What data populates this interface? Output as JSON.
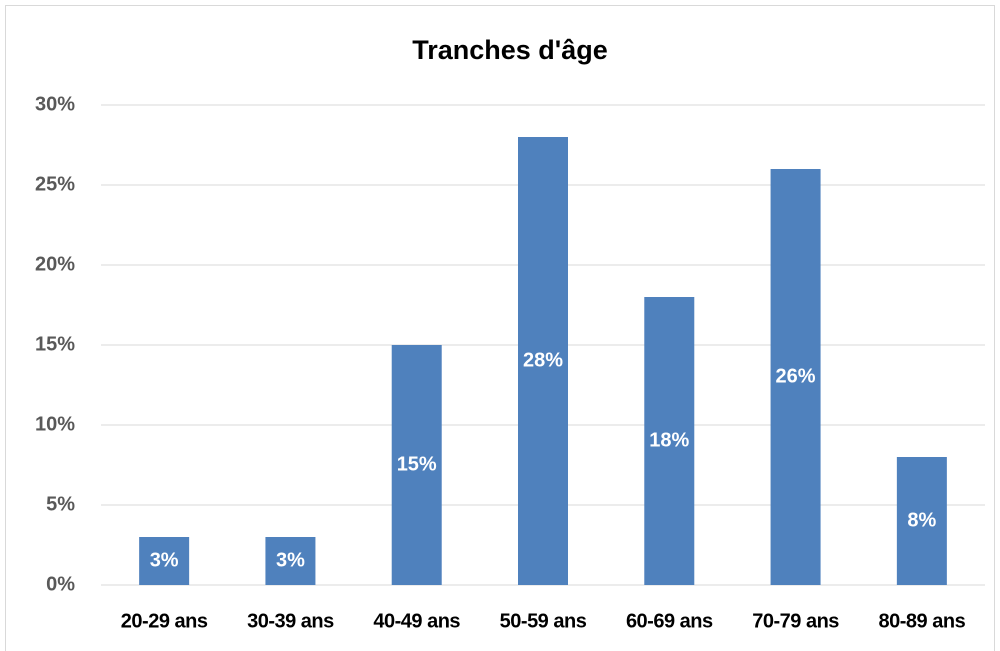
{
  "chart_data": {
    "type": "bar",
    "title": "Tranches d'âge",
    "categories": [
      "20-29 ans",
      "30-39 ans",
      "40-49 ans",
      "50-59 ans",
      "60-69 ans",
      "70-79 ans",
      "80-89 ans"
    ],
    "values": [
      3,
      3,
      15,
      28,
      18,
      26,
      8
    ],
    "value_labels": [
      "3%",
      "3%",
      "15%",
      "28%",
      "18%",
      "26%",
      "8%"
    ],
    "color": "#4f81bd",
    "ylim": [
      0,
      30
    ],
    "yticks": [
      {
        "value": 0,
        "label": "0%"
      },
      {
        "value": 5,
        "label": "5%"
      },
      {
        "value": 10,
        "label": "10%"
      },
      {
        "value": 15,
        "label": "15%"
      },
      {
        "value": 20,
        "label": "20%"
      },
      {
        "value": 25,
        "label": "25%"
      },
      {
        "value": 30,
        "label": "30%"
      }
    ],
    "grid": true
  }
}
